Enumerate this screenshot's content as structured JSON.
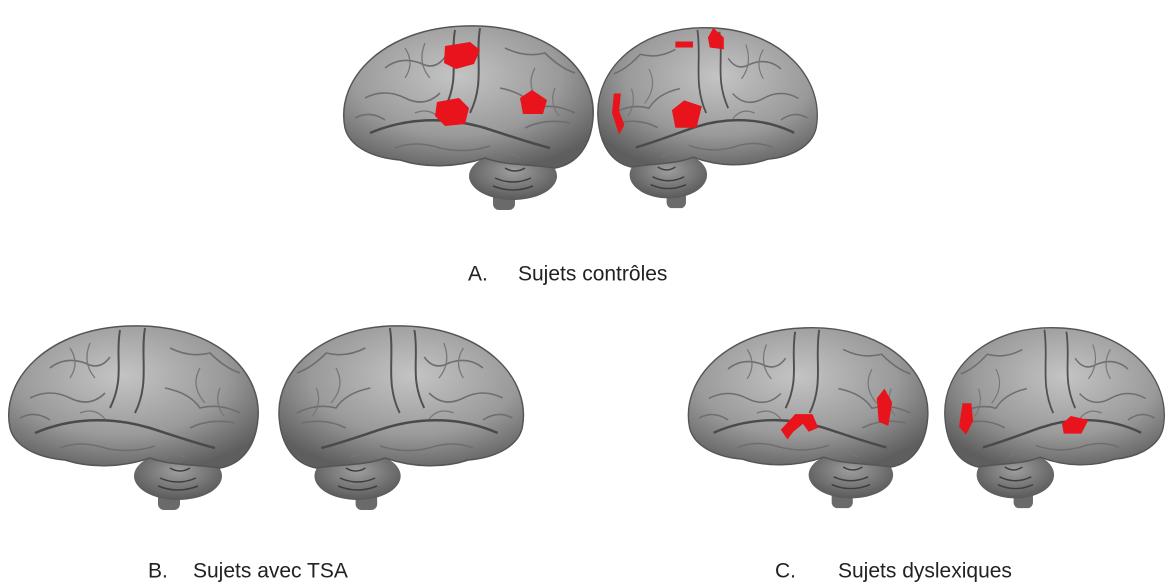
{
  "panels": [
    {
      "letter": "A.",
      "label": "Sujets contrôles"
    },
    {
      "letter": "B.",
      "label": "Sujets avec TSA"
    },
    {
      "letter": "C.",
      "label": "Sujets dyslexiques"
    }
  ]
}
